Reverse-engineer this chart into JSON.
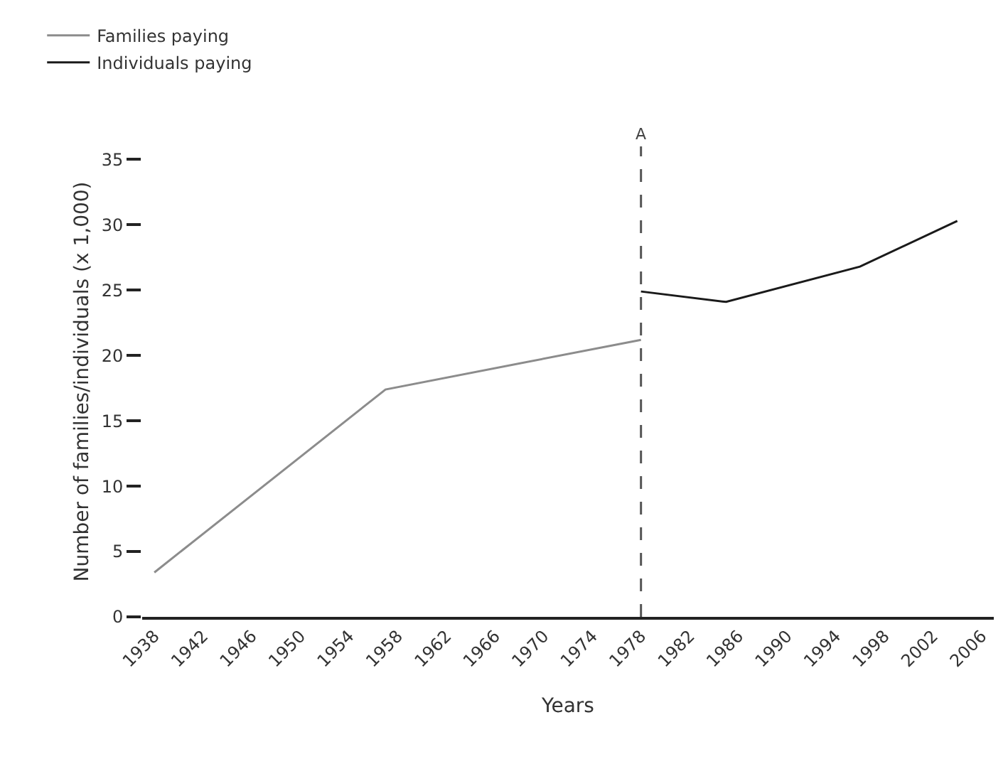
{
  "chart_data": {
    "type": "line",
    "xlabel": "Years",
    "ylabel": "Number of families/individuals (x 1,000)",
    "series": [
      {
        "name": "Families paying",
        "color": "#8c8c8c",
        "x": [
          1938,
          1957,
          1978
        ],
        "values": [
          3.4,
          17.4,
          21.2
        ]
      },
      {
        "name": "Individuals paying",
        "color": "#1a1a1a",
        "x": [
          1978,
          1985,
          1996,
          2004
        ],
        "values": [
          24.9,
          24.1,
          26.8,
          30.3
        ]
      }
    ],
    "xlim": [
      1937,
      2007
    ],
    "xticks": [
      1938,
      1942,
      1946,
      1950,
      1954,
      1958,
      1962,
      1966,
      1970,
      1974,
      1978,
      1982,
      1986,
      1990,
      1994,
      1998,
      2002,
      2006
    ],
    "ylim": [
      0,
      36
    ],
    "yticks": [
      0,
      5,
      10,
      15,
      20,
      25,
      30,
      35
    ],
    "ref_lines": [
      {
        "axis": "x",
        "value": 1978,
        "label": "A",
        "color": "#555555",
        "line_style": "dashed"
      }
    ],
    "legend": "top left",
    "grid": false,
    "marker": "none",
    "line_style": "solid"
  }
}
